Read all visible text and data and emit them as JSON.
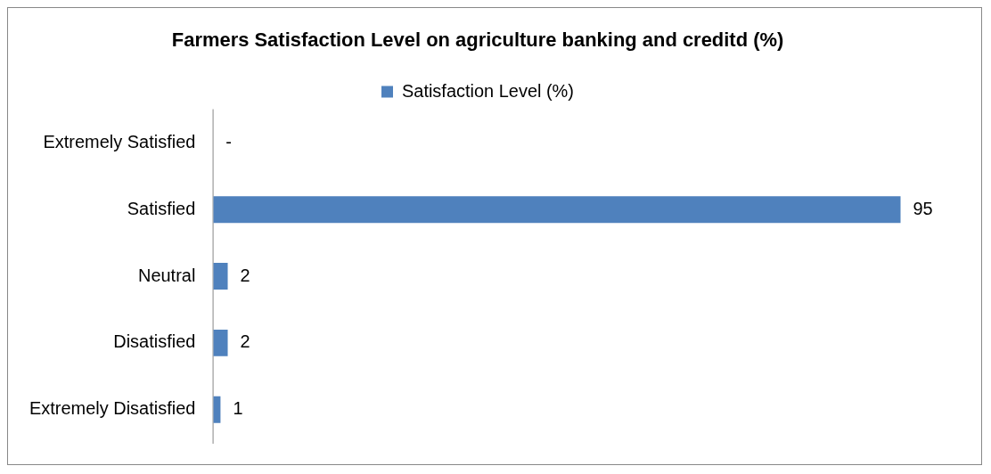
{
  "chart_data": {
    "type": "bar",
    "orientation": "horizontal",
    "title": "Farmers Satisfaction Level on agriculture banking and creditd (%)",
    "categories": [
      "Extremely Satisfied",
      "Satisfied",
      "Neutral",
      "Disatisfied",
      "Extremely Disatisfied"
    ],
    "series": [
      {
        "name": "Satisfaction Level (%)",
        "color": "#4f81bd",
        "values": [
          0,
          95,
          2,
          2,
          1
        ],
        "value_labels": [
          "-",
          "95",
          "2",
          "2",
          "1"
        ]
      }
    ],
    "tick_labels": "y",
    "grid": false,
    "legend": "top"
  }
}
